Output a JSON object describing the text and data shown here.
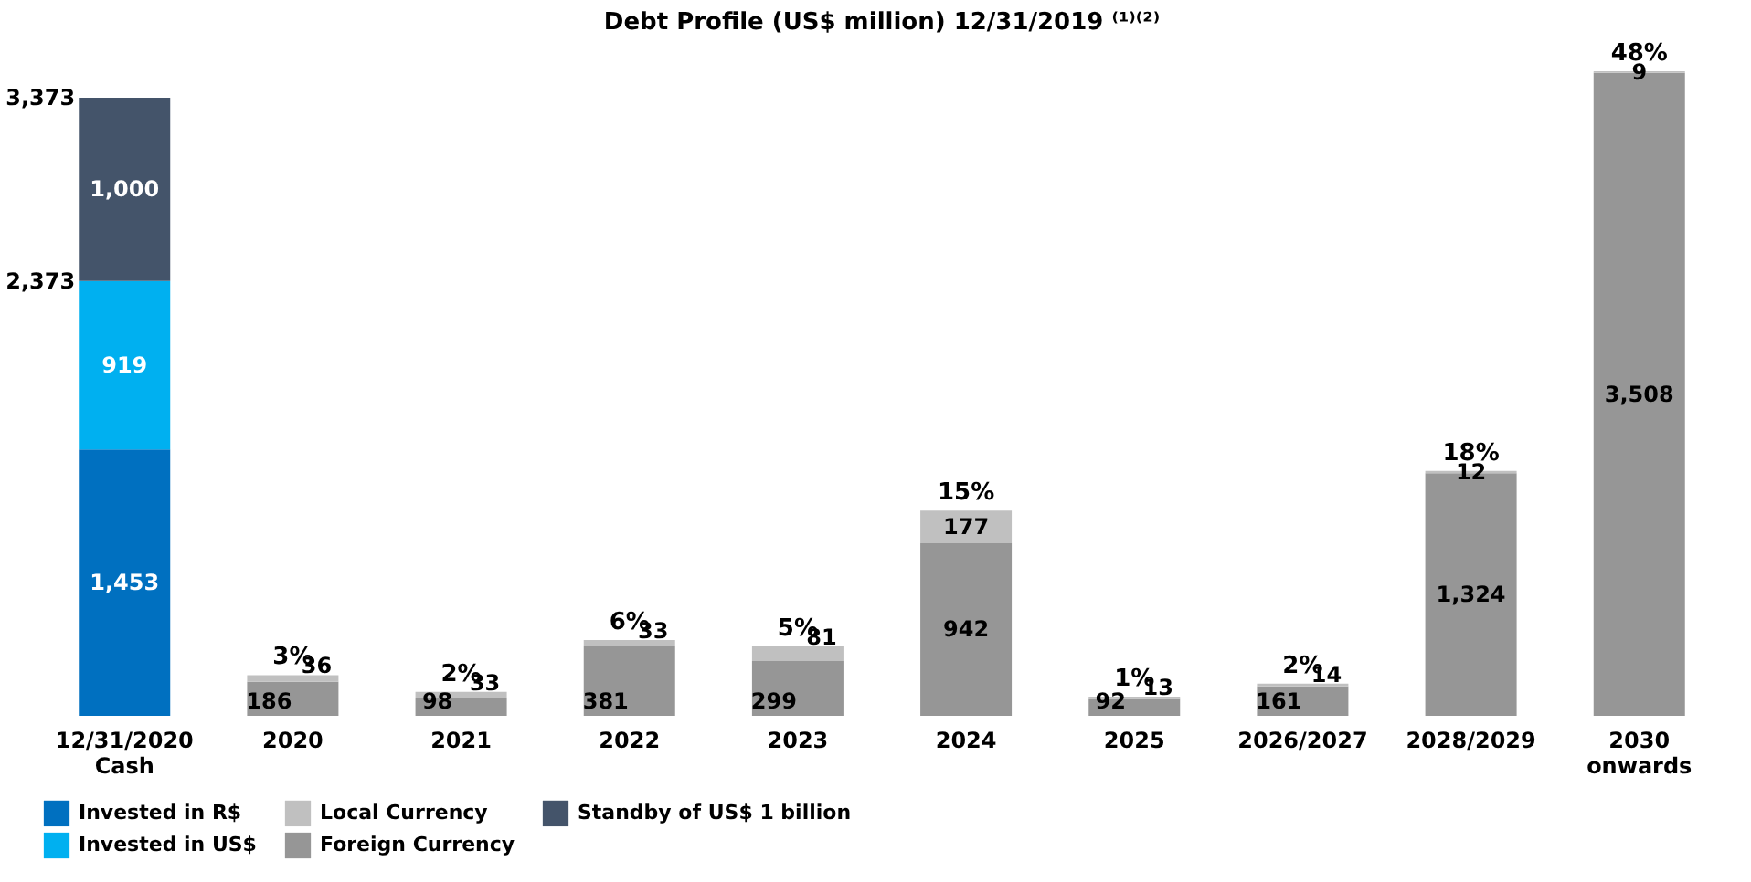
{
  "chart_data": {
    "type": "bar",
    "title": "Debt Profile (US$ million) 12/31/2019 ⁽¹⁾⁽²⁾",
    "stacked": true,
    "legend": "bottom left",
    "categories": [
      "12/31/2020 Cash",
      "2020",
      "2021",
      "2022",
      "2023",
      "2024",
      "2025",
      "2026/2027",
      "2028/2029",
      "2030 onwards"
    ],
    "series": [
      {
        "name": "Invested in R$",
        "color": "#0070c0",
        "values": [
          1453,
          null,
          null,
          null,
          null,
          null,
          null,
          null,
          null,
          null
        ],
        "value_labels": [
          "1,453",
          null,
          null,
          null,
          null,
          null,
          null,
          null,
          null,
          null
        ]
      },
      {
        "name": "Invested in US$",
        "color": "#00b0f0",
        "values": [
          919,
          null,
          null,
          null,
          null,
          null,
          null,
          null,
          null,
          null
        ],
        "value_labels": [
          "919",
          null,
          null,
          null,
          null,
          null,
          null,
          null,
          null,
          null
        ]
      },
      {
        "name": "Standby of US$ 1 billion",
        "color": "#44546a",
        "values": [
          1000,
          null,
          null,
          null,
          null,
          null,
          null,
          null,
          null,
          null
        ],
        "value_labels": [
          "1,000",
          null,
          null,
          null,
          null,
          null,
          null,
          null,
          null,
          null
        ]
      },
      {
        "name": "Foreign Currency",
        "color": "#969696",
        "values": [
          null,
          186,
          98,
          381,
          299,
          942,
          92,
          161,
          1324,
          3508
        ],
        "value_labels": [
          null,
          "186",
          "98",
          "381",
          "299",
          "942",
          "92",
          "161",
          "1,324",
          "3,508"
        ]
      },
      {
        "name": "Local Currency",
        "color": "#c0c0c0",
        "values": [
          null,
          36,
          33,
          33,
          81,
          177,
          13,
          14,
          12,
          9
        ],
        "value_labels": [
          null,
          "36",
          "33",
          "33",
          "81",
          "177",
          "13",
          "14",
          "12",
          "9"
        ]
      }
    ],
    "annotations": [
      {
        "text": "3,373",
        "x": "12/31/2020 Cash",
        "y": 3373
      },
      {
        "text": "2,373",
        "x": "12/31/2020 Cash",
        "y": 2373
      },
      {
        "text": "3%",
        "x": "2020",
        "y": 222
      },
      {
        "text": "2%",
        "x": "2021",
        "y": 131
      },
      {
        "text": "6%",
        "x": "2022",
        "y": 414
      },
      {
        "text": "5%",
        "x": "2023",
        "y": 380
      },
      {
        "text": "15%",
        "x": "2024",
        "y": 1119
      },
      {
        "text": "1%",
        "x": "2025",
        "y": 105
      },
      {
        "text": "2%",
        "x": "2026/2027",
        "y": 175
      },
      {
        "text": "18%",
        "x": "2028/2029",
        "y": 1336
      },
      {
        "text": "48%",
        "x": "2030 onwards",
        "y": 3517
      }
    ]
  }
}
